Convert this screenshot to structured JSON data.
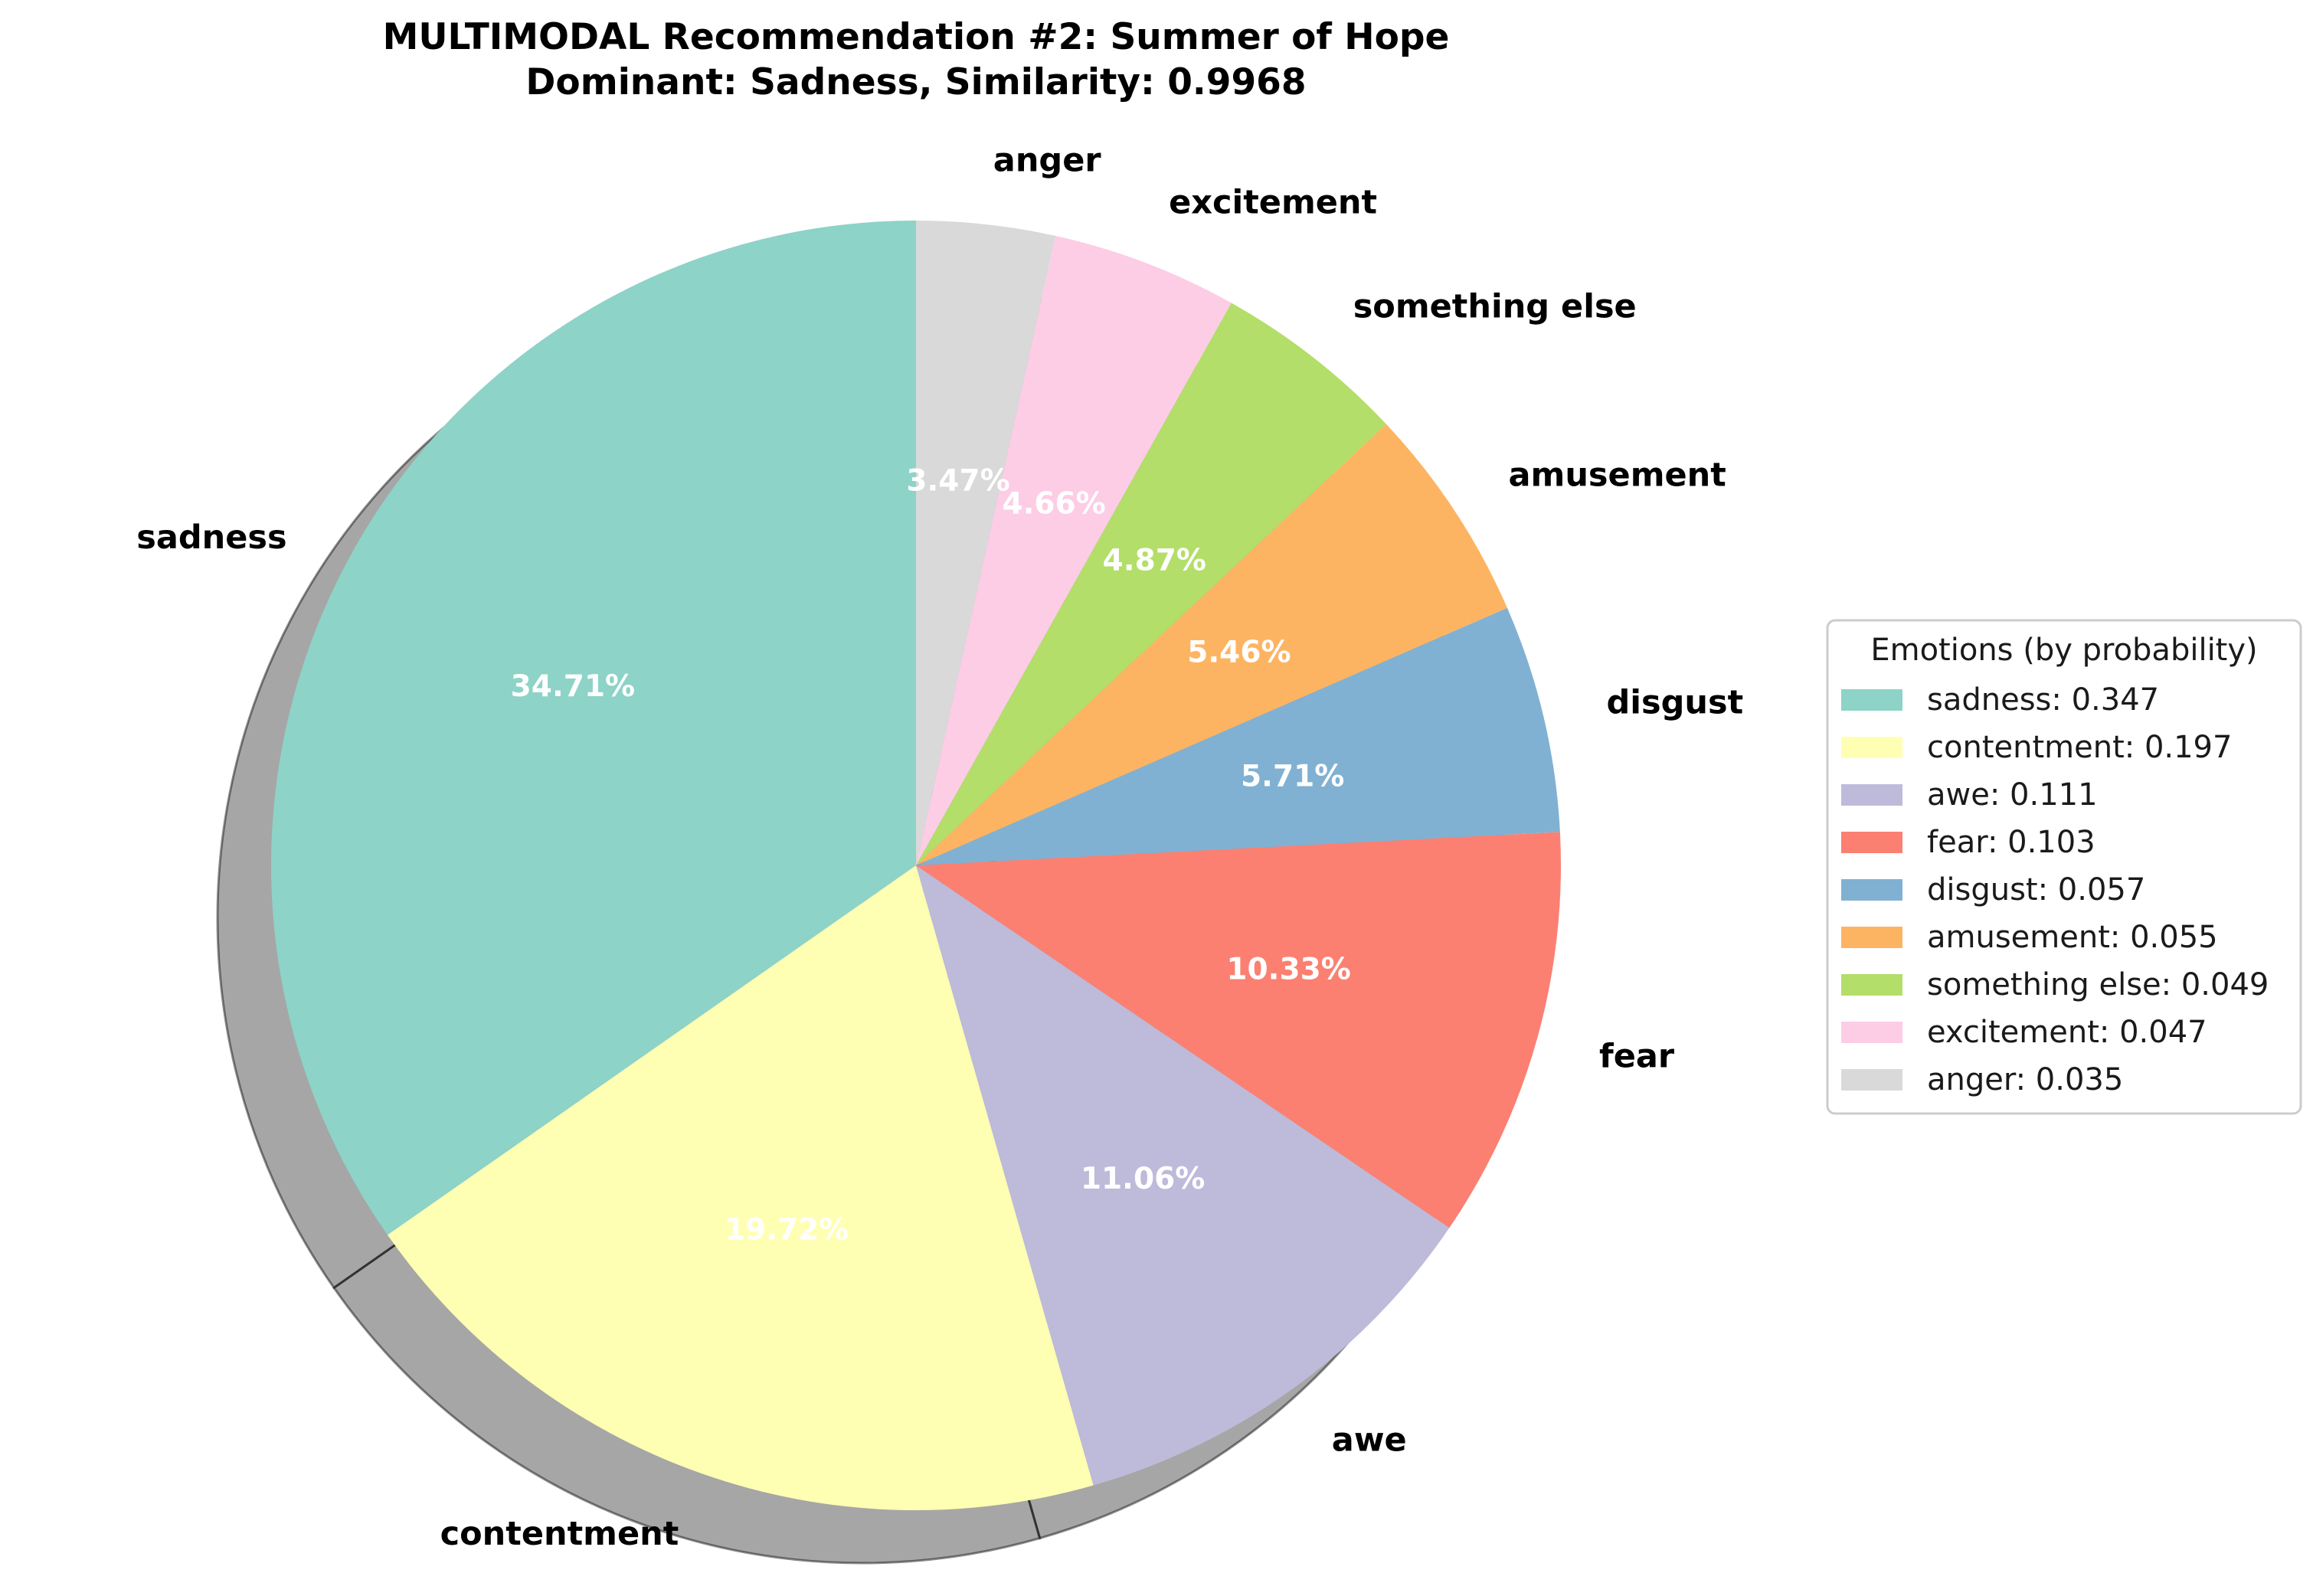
{
  "chart_data": {
    "type": "pie",
    "title_lines": [
      "MULTIMODAL Recommendation #2: Summer of Hope",
      "Dominant: Sadness, Similarity: 0.9968"
    ],
    "shadow": true,
    "start_angle_deg": 90,
    "direction": "counterclockwise",
    "legend_title": "Emotions (by probability)",
    "legend_position": "right",
    "slices": [
      {
        "label": "sadness",
        "value": 0.3471,
        "percent_label": "34.71%",
        "legend_label": "sadness: 0.347",
        "color": "#8dd3c7"
      },
      {
        "label": "contentment",
        "value": 0.1972,
        "percent_label": "19.72%",
        "legend_label": "contentment: 0.197",
        "color": "#ffffb3"
      },
      {
        "label": "awe",
        "value": 0.1106,
        "percent_label": "11.06%",
        "legend_label": "awe: 0.111",
        "color": "#bebada"
      },
      {
        "label": "fear",
        "value": 0.1033,
        "percent_label": "10.33%",
        "legend_label": "fear: 0.103",
        "color": "#fb8072"
      },
      {
        "label": "disgust",
        "value": 0.0571,
        "percent_label": "5.71%",
        "legend_label": "disgust: 0.057",
        "color": "#80b1d3"
      },
      {
        "label": "amusement",
        "value": 0.0546,
        "percent_label": "5.46%",
        "legend_label": "amusement: 0.055",
        "color": "#fdb462"
      },
      {
        "label": "something else",
        "value": 0.0487,
        "percent_label": "4.87%",
        "legend_label": "something else: 0.049",
        "color": "#b3de69"
      },
      {
        "label": "excitement",
        "value": 0.0466,
        "percent_label": "4.66%",
        "legend_label": "excitement: 0.047",
        "color": "#fccde5"
      },
      {
        "label": "anger",
        "value": 0.0347,
        "percent_label": "3.47%",
        "legend_label": "anger: 0.035",
        "color": "#d9d9d9"
      }
    ]
  }
}
